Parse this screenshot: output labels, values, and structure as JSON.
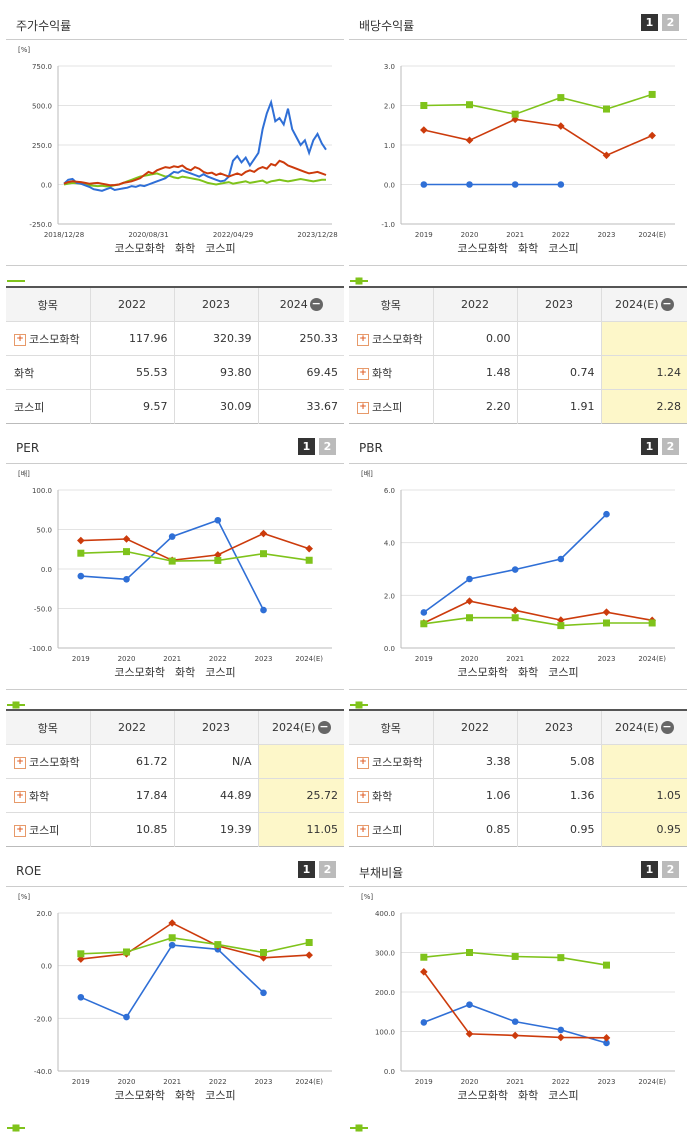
{
  "colors": {
    "company": "#2f6fd6",
    "industry": "#cc3b0c",
    "market": "#7fc31b"
  },
  "legend": [
    "코스모화학",
    "화학",
    "코스피"
  ],
  "panels": {
    "stock": {
      "title": "주가수익률",
      "unit": "[%]"
    },
    "dividend": {
      "title": "배당수익률",
      "unit": "",
      "btn1": "1",
      "btn2": "2"
    },
    "per": {
      "title": "PER",
      "unit": "[배]",
      "btn1": "1",
      "btn2": "2"
    },
    "pbr": {
      "title": "PBR",
      "unit": "[배]",
      "btn1": "1",
      "btn2": "2"
    },
    "roe": {
      "title": "ROE",
      "unit": "[%]",
      "btn1": "1",
      "btn2": "2"
    },
    "debt": {
      "title": "부채비율",
      "unit": "[%]",
      "btn1": "1",
      "btn2": "2"
    }
  },
  "tables": {
    "stock": {
      "headers": [
        "항목",
        "2022",
        "2023",
        "2024"
      ],
      "rows": [
        {
          "name": "코스모화학",
          "plus": true,
          "values": [
            "117.96",
            "320.39",
            "250.33"
          ]
        },
        {
          "name": "화학",
          "plus": false,
          "values": [
            "55.53",
            "93.80",
            "69.45"
          ]
        },
        {
          "name": "코스피",
          "plus": false,
          "values": [
            "9.57",
            "30.09",
            "33.67"
          ]
        }
      ]
    },
    "dividend": {
      "headers": [
        "항목",
        "2022",
        "2023",
        "2024(E)"
      ],
      "rows": [
        {
          "name": "코스모화학",
          "plus": true,
          "values": [
            "0.00",
            "",
            ""
          ]
        },
        {
          "name": "화학",
          "plus": true,
          "values": [
            "1.48",
            "0.74",
            "1.24"
          ]
        },
        {
          "name": "코스피",
          "plus": true,
          "values": [
            "2.20",
            "1.91",
            "2.28"
          ]
        }
      ]
    },
    "per": {
      "headers": [
        "항목",
        "2022",
        "2023",
        "2024(E)"
      ],
      "rows": [
        {
          "name": "코스모화학",
          "plus": true,
          "values": [
            "61.72",
            "N/A",
            ""
          ]
        },
        {
          "name": "화학",
          "plus": true,
          "values": [
            "17.84",
            "44.89",
            "25.72"
          ]
        },
        {
          "name": "코스피",
          "plus": true,
          "values": [
            "10.85",
            "19.39",
            "11.05"
          ]
        }
      ]
    },
    "pbr": {
      "headers": [
        "항목",
        "2022",
        "2023",
        "2024(E)"
      ],
      "rows": [
        {
          "name": "코스모화학",
          "plus": true,
          "values": [
            "3.38",
            "5.08",
            ""
          ]
        },
        {
          "name": "화학",
          "plus": true,
          "values": [
            "1.06",
            "1.36",
            "1.05"
          ]
        },
        {
          "name": "코스피",
          "plus": true,
          "values": [
            "0.85",
            "0.95",
            "0.95"
          ]
        }
      ]
    }
  },
  "chart_data": [
    {
      "id": "stock",
      "type": "line",
      "ylim": [
        -250,
        750
      ],
      "yticks": [
        "750.0",
        "500.0",
        "250.0",
        "0.0",
        "-250.0"
      ],
      "ytick_values": [
        750,
        500,
        250,
        0,
        -250
      ],
      "xticks": [
        "2018/12/28",
        "2020/08/31",
        "2022/04/29",
        "2023/12/28"
      ],
      "xtick_index": [
        0,
        20,
        40,
        60
      ],
      "series": [
        {
          "name": "코스모화학",
          "values": [
            5,
            30,
            35,
            10,
            5,
            -5,
            -15,
            -30,
            -35,
            -40,
            -30,
            -20,
            -35,
            -30,
            -25,
            -20,
            -10,
            -15,
            -5,
            -10,
            0,
            10,
            20,
            30,
            40,
            60,
            80,
            75,
            90,
            80,
            70,
            60,
            50,
            65,
            50,
            40,
            30,
            20,
            25,
            50,
            150,
            180,
            140,
            170,
            120,
            160,
            200,
            350,
            450,
            520,
            400,
            420,
            380,
            480,
            350,
            300,
            250,
            280,
            200,
            280,
            320,
            260,
            220
          ]
        },
        {
          "name": "화학",
          "values": [
            5,
            15,
            20,
            18,
            15,
            10,
            5,
            8,
            10,
            5,
            0,
            -5,
            -3,
            0,
            10,
            15,
            20,
            30,
            40,
            60,
            80,
            70,
            90,
            100,
            110,
            105,
            115,
            110,
            120,
            100,
            90,
            110,
            100,
            80,
            70,
            75,
            60,
            70,
            60,
            50,
            60,
            70,
            60,
            80,
            90,
            80,
            100,
            110,
            100,
            130,
            120,
            150,
            140,
            120,
            110,
            100,
            90,
            80,
            70,
            75,
            80,
            70,
            60
          ]
        },
        {
          "name": "코스피",
          "values": [
            0,
            5,
            10,
            8,
            5,
            0,
            -5,
            -8,
            -10,
            -8,
            -12,
            -10,
            -5,
            0,
            10,
            20,
            30,
            40,
            50,
            55,
            60,
            65,
            70,
            60,
            50,
            55,
            45,
            40,
            50,
            45,
            40,
            35,
            30,
            20,
            10,
            5,
            0,
            5,
            10,
            15,
            5,
            10,
            15,
            20,
            10,
            15,
            20,
            25,
            10,
            20,
            25,
            30,
            25,
            20,
            25,
            30,
            35,
            30,
            25,
            20,
            25,
            30,
            30
          ]
        }
      ]
    },
    {
      "id": "dividend",
      "type": "line",
      "categories": [
        "2019",
        "2020",
        "2021",
        "2022",
        "2023",
        "2024(E)"
      ],
      "ylim": [
        -1,
        3
      ],
      "yticks": [
        "3.0",
        "2.0",
        "1.0",
        "0.0",
        "-1.0"
      ],
      "ytick_values": [
        3,
        2,
        1,
        0,
        -1
      ],
      "series": [
        {
          "name": "코스모화학",
          "values": [
            0,
            0,
            0,
            0,
            null,
            null
          ]
        },
        {
          "name": "화학",
          "values": [
            1.38,
            1.12,
            1.65,
            1.48,
            0.74,
            1.24
          ]
        },
        {
          "name": "코스피",
          "values": [
            2.0,
            2.02,
            1.78,
            2.2,
            1.91,
            2.28
          ]
        }
      ]
    },
    {
      "id": "per",
      "type": "line",
      "categories": [
        "2019",
        "2020",
        "2021",
        "2022",
        "2023",
        "2024(E)"
      ],
      "ylim": [
        -100,
        100
      ],
      "yticks": [
        "100.0",
        "50.0",
        "0.0",
        "-50.0",
        "-100.0"
      ],
      "ytick_values": [
        100,
        50,
        0,
        -50,
        -100
      ],
      "series": [
        {
          "name": "코스모화학",
          "values": [
            -9,
            -13,
            41,
            61.72,
            -52,
            null
          ]
        },
        {
          "name": "화학",
          "values": [
            36,
            38,
            11,
            17.84,
            44.89,
            25.72
          ]
        },
        {
          "name": "코스피",
          "values": [
            20,
            22,
            10,
            10.85,
            19.39,
            11.05
          ]
        }
      ]
    },
    {
      "id": "pbr",
      "type": "line",
      "categories": [
        "2019",
        "2020",
        "2021",
        "2022",
        "2023",
        "2024(E)"
      ],
      "ylim": [
        0,
        6
      ],
      "yticks": [
        "6.0",
        "4.0",
        "2.0",
        "0.0"
      ],
      "ytick_values": [
        6,
        4,
        2,
        0
      ],
      "series": [
        {
          "name": "코스모화학",
          "values": [
            1.35,
            2.62,
            2.98,
            3.38,
            5.08,
            null
          ]
        },
        {
          "name": "화학",
          "values": [
            0.95,
            1.78,
            1.43,
            1.06,
            1.36,
            1.05
          ]
        },
        {
          "name": "코스피",
          "values": [
            0.92,
            1.15,
            1.15,
            0.85,
            0.95,
            0.95
          ]
        }
      ]
    },
    {
      "id": "roe",
      "type": "line",
      "categories": [
        "2019",
        "2020",
        "2021",
        "2022",
        "2023",
        "2024(E)"
      ],
      "ylim": [
        -40,
        20
      ],
      "yticks": [
        "20.0",
        "0.0",
        "-20.0",
        "-40.0"
      ],
      "ytick_values": [
        20,
        0,
        -20,
        -40
      ],
      "series": [
        {
          "name": "코스모화학",
          "values": [
            -12,
            -19.5,
            7.8,
            6.2,
            -10.3,
            null
          ]
        },
        {
          "name": "화학",
          "values": [
            2.5,
            4.5,
            16.2,
            7.5,
            3.0,
            4.0
          ]
        },
        {
          "name": "코스피",
          "values": [
            4.5,
            5.2,
            10.6,
            8.0,
            5.0,
            8.8
          ]
        }
      ]
    },
    {
      "id": "debt",
      "type": "line",
      "categories": [
        "2019",
        "2020",
        "2021",
        "2022",
        "2023",
        "2024(E)"
      ],
      "ylim": [
        0,
        400
      ],
      "yticks": [
        "400.0",
        "300.0",
        "200.0",
        "100.0",
        "0.0"
      ],
      "ytick_values": [
        400,
        300,
        200,
        100,
        0
      ],
      "series": [
        {
          "name": "코스모화학",
          "values": [
            123,
            168,
            125,
            104,
            71,
            null
          ]
        },
        {
          "name": "화학",
          "values": [
            251,
            94,
            90,
            85,
            84,
            null
          ]
        },
        {
          "name": "코스피",
          "values": [
            288,
            300,
            290,
            287,
            268,
            null
          ]
        }
      ]
    }
  ]
}
